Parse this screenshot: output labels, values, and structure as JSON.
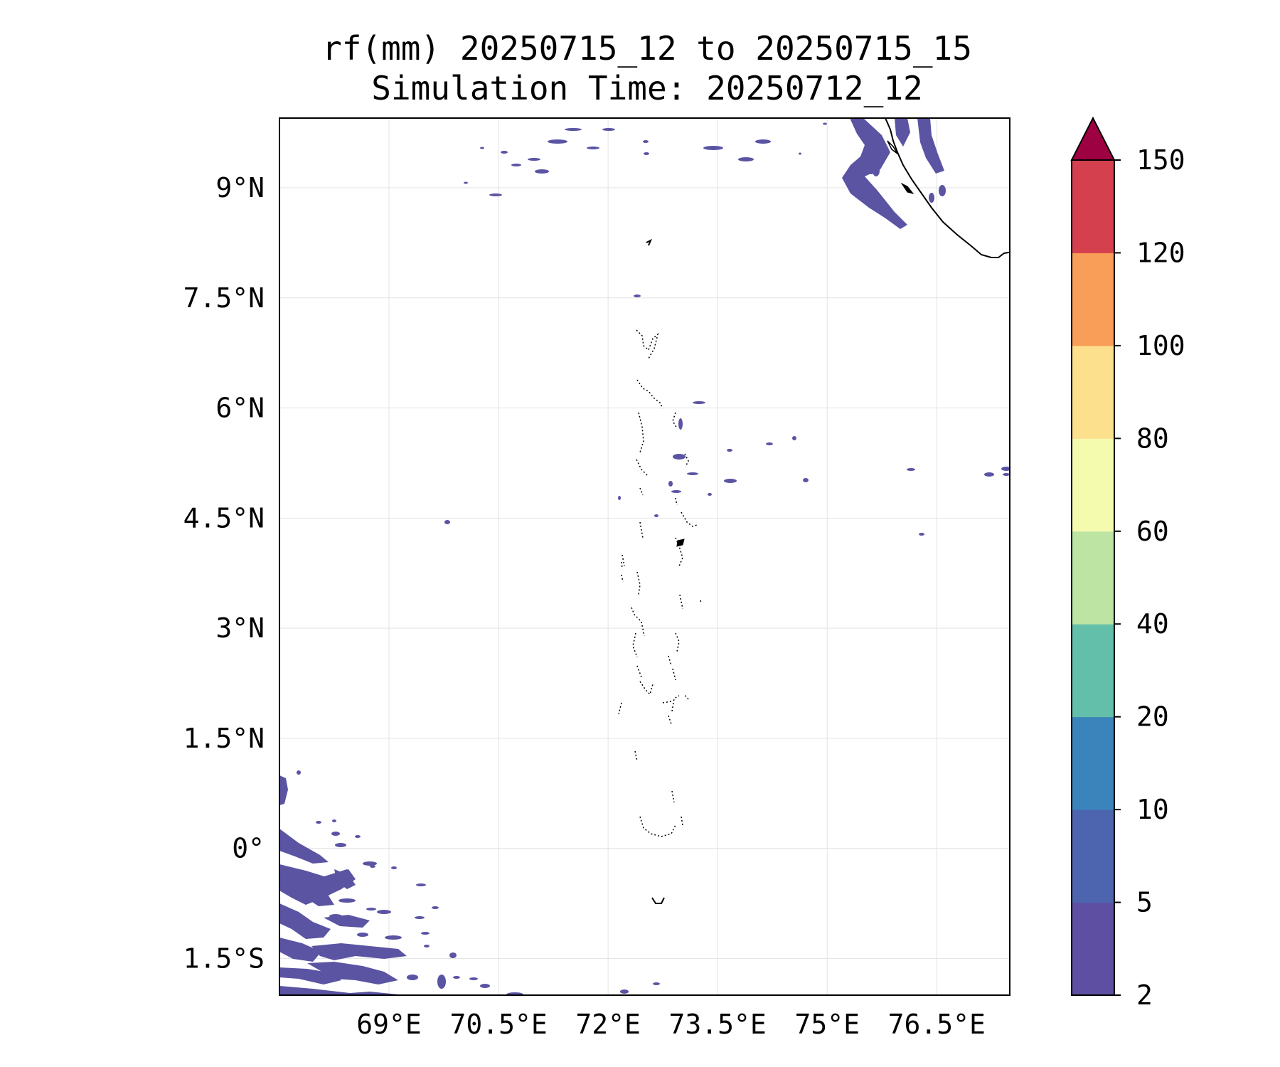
{
  "title": {
    "line1": "rf(mm) 20250715_12 to 20250715_15",
    "line2": "Simulation Time: 20250712_12"
  },
  "map": {
    "lon_range": [
      67.5,
      77.5
    ],
    "lat_range": [
      -2.0,
      9.95
    ],
    "lon_ticks": [
      {
        "value": 69.0,
        "label": "69°E"
      },
      {
        "value": 70.5,
        "label": "70.5°E"
      },
      {
        "value": 72.0,
        "label": "72°E"
      },
      {
        "value": 73.5,
        "label": "73.5°E"
      },
      {
        "value": 75.0,
        "label": "75°E"
      },
      {
        "value": 76.5,
        "label": "76.5°E"
      }
    ],
    "lat_ticks": [
      {
        "value": 9.0,
        "label": "9°N"
      },
      {
        "value": 7.5,
        "label": "7.5°N"
      },
      {
        "value": 6.0,
        "label": "6°N"
      },
      {
        "value": 4.5,
        "label": "4.5°N"
      },
      {
        "value": 3.0,
        "label": "3°N"
      },
      {
        "value": 1.5,
        "label": "1.5°N"
      },
      {
        "value": 0.0,
        "label": "0°"
      },
      {
        "value": -1.5,
        "label": "1.5°S"
      }
    ],
    "gridlines": true,
    "rain_color": "#5a54a3",
    "rain_color_2": "#4f63ac"
  },
  "colorbar": {
    "levels": [
      "2",
      "5",
      "10",
      "20",
      "40",
      "60",
      "80",
      "100",
      "120",
      "150"
    ],
    "colors": [
      "#5e4fa2",
      "#4d64ae",
      "#3a84bb",
      "#63bfa9",
      "#bde4a2",
      "#f4faae",
      "#fde08d",
      "#f99e58",
      "#d5404f"
    ],
    "extend_color": "#9e0142",
    "extend": "max"
  }
}
